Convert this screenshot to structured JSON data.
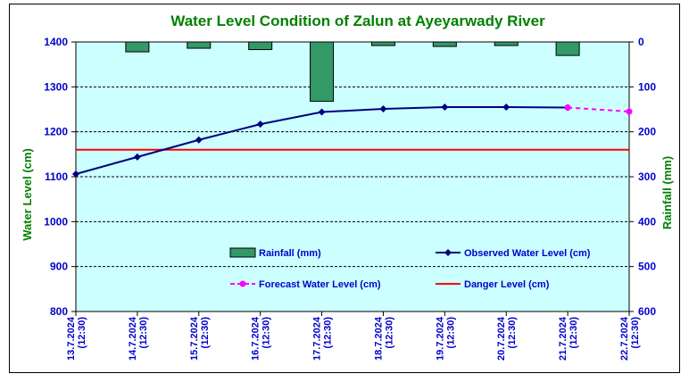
{
  "chart_data": {
    "type": "bar+line",
    "title": "Water Level Condition of Zalun at Ayeyarwady River",
    "ylabel": "Water Level (cm)",
    "y2label": "Rainfall (mm)",
    "ylim": [
      800,
      1400
    ],
    "y2lim": [
      0,
      600
    ],
    "y2_inverted": true,
    "yticks": [
      "800",
      "900",
      "1000",
      "1100",
      "1200",
      "1300",
      "1400"
    ],
    "y2ticks": [
      "0",
      "100",
      "200",
      "300",
      "400",
      "500",
      "600"
    ],
    "grid": "horizontal dashed",
    "categories": [
      "13.7.2024 (12:30)",
      "14.7.2024 (12:30)",
      "15.7.2024 (12:30)",
      "16.7.2024 (12:30)",
      "17.7.2024 (12:30)",
      "18.7.2024 (12:30)",
      "19.7.2024 (12:30)",
      "20.7.2024 (12:30)",
      "21.7.2024 (12:30)",
      "22.7.2024 (12:30)"
    ],
    "x_labels": [
      {
        "date": "13.7.2024",
        "time": "(12:30)"
      },
      {
        "date": "14.7.2024",
        "time": "(12:30)"
      },
      {
        "date": "15.7.2024",
        "time": "(12:30)"
      },
      {
        "date": "16.7.2024",
        "time": "(12:30)"
      },
      {
        "date": "17.7.2024",
        "time": "(12:30)"
      },
      {
        "date": "18.7.2024",
        "time": "(12:30)"
      },
      {
        "date": "19.7.2024",
        "time": "(12:30)"
      },
      {
        "date": "20.7.2024",
        "time": "(12:30)"
      },
      {
        "date": "21.7.2024",
        "time": "(12:30)"
      },
      {
        "date": "22.7.2024",
        "time": "(12:30)"
      }
    ],
    "series": [
      {
        "name": "Rainfall (mm)",
        "type": "bar",
        "axis": "right",
        "color": "#339966",
        "values": [
          null,
          22,
          14,
          17,
          132,
          8,
          10,
          8,
          30,
          null
        ]
      },
      {
        "name": "Observed Water Level (cm)",
        "type": "line",
        "axis": "left",
        "color": "#000080",
        "values": [
          1106,
          1144,
          1182,
          1217,
          1244,
          1251,
          1255,
          1255,
          1254,
          null
        ]
      },
      {
        "name": "Forecast Water Level (cm)",
        "type": "line-dashed",
        "axis": "left",
        "color": "#ff00ff",
        "values": [
          null,
          null,
          null,
          null,
          null,
          null,
          null,
          null,
          1254,
          1245
        ]
      },
      {
        "name": "Danger Level (cm)",
        "type": "hline",
        "axis": "left",
        "color": "#ff0000",
        "value": 1160
      }
    ],
    "legend": [
      {
        "label": "Rainfall (mm)",
        "kind": "bar",
        "color": "#339966"
      },
      {
        "label": "Observed Water Level (cm)",
        "kind": "line-marker",
        "color": "#000080"
      },
      {
        "label": "Forecast Water Level (cm)",
        "kind": "dashed-marker",
        "color": "#ff00ff"
      },
      {
        "label": "Danger Level (cm)",
        "kind": "line",
        "color": "#ff0000"
      }
    ],
    "legend_position": "inside-bottom"
  }
}
